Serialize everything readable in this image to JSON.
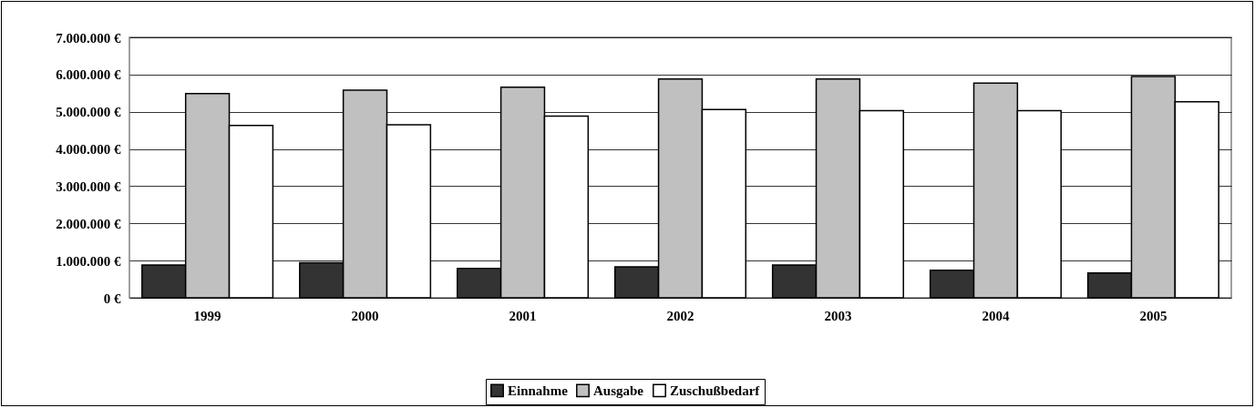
{
  "chart_data": {
    "type": "bar",
    "categories": [
      "1999",
      "2000",
      "2001",
      "2002",
      "2003",
      "2004",
      "2005"
    ],
    "series": [
      {
        "name": "Einnahme",
        "color": "#333333",
        "values": [
          880000,
          940000,
          790000,
          830000,
          880000,
          740000,
          670000
        ]
      },
      {
        "name": "Ausgabe",
        "color": "#c0c0c0",
        "values": [
          5490000,
          5580000,
          5660000,
          5880000,
          5880000,
          5770000,
          5950000
        ]
      },
      {
        "name": "Zuschußbedarf",
        "color": "#ffffff",
        "values": [
          4630000,
          4650000,
          4880000,
          5060000,
          5030000,
          5030000,
          5270000
        ]
      }
    ],
    "ylim": [
      0,
      7000000
    ],
    "yticks": [
      {
        "value": 0,
        "label": "0 €"
      },
      {
        "value": 1000000,
        "label": "1.000.000 €"
      },
      {
        "value": 2000000,
        "label": "2.000.000 €"
      },
      {
        "value": 3000000,
        "label": "3.000.000 €"
      },
      {
        "value": 4000000,
        "label": "4.000.000 €"
      },
      {
        "value": 5000000,
        "label": "5.000.000 €"
      },
      {
        "value": 6000000,
        "label": "6.000.000 €"
      },
      {
        "value": 7000000,
        "label": "7.000.000 €"
      }
    ],
    "grid": "y",
    "legend": "bottom"
  }
}
